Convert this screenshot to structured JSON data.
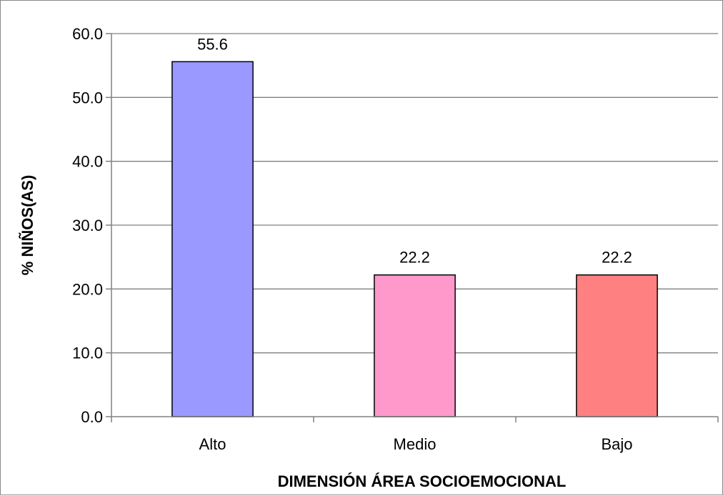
{
  "chart_data": {
    "type": "bar",
    "categories": [
      "Alto",
      "Medio",
      "Bajo"
    ],
    "values": [
      55.6,
      22.2,
      22.2
    ],
    "value_labels": [
      "55.6",
      "22.2",
      "22.2"
    ],
    "colors": [
      "#9999ff",
      "#ff99cc",
      "#ff8080"
    ],
    "xlabel": "DIMENSIÓN ÁREA SOCIOEMOCIONAL",
    "ylabel": "% NIÑOS(AS)",
    "ylim": [
      0,
      60
    ],
    "yticks": [
      "0.0",
      "10.0",
      "20.0",
      "30.0",
      "40.0",
      "50.0",
      "60.0"
    ],
    "grid": true,
    "legend": "none"
  }
}
